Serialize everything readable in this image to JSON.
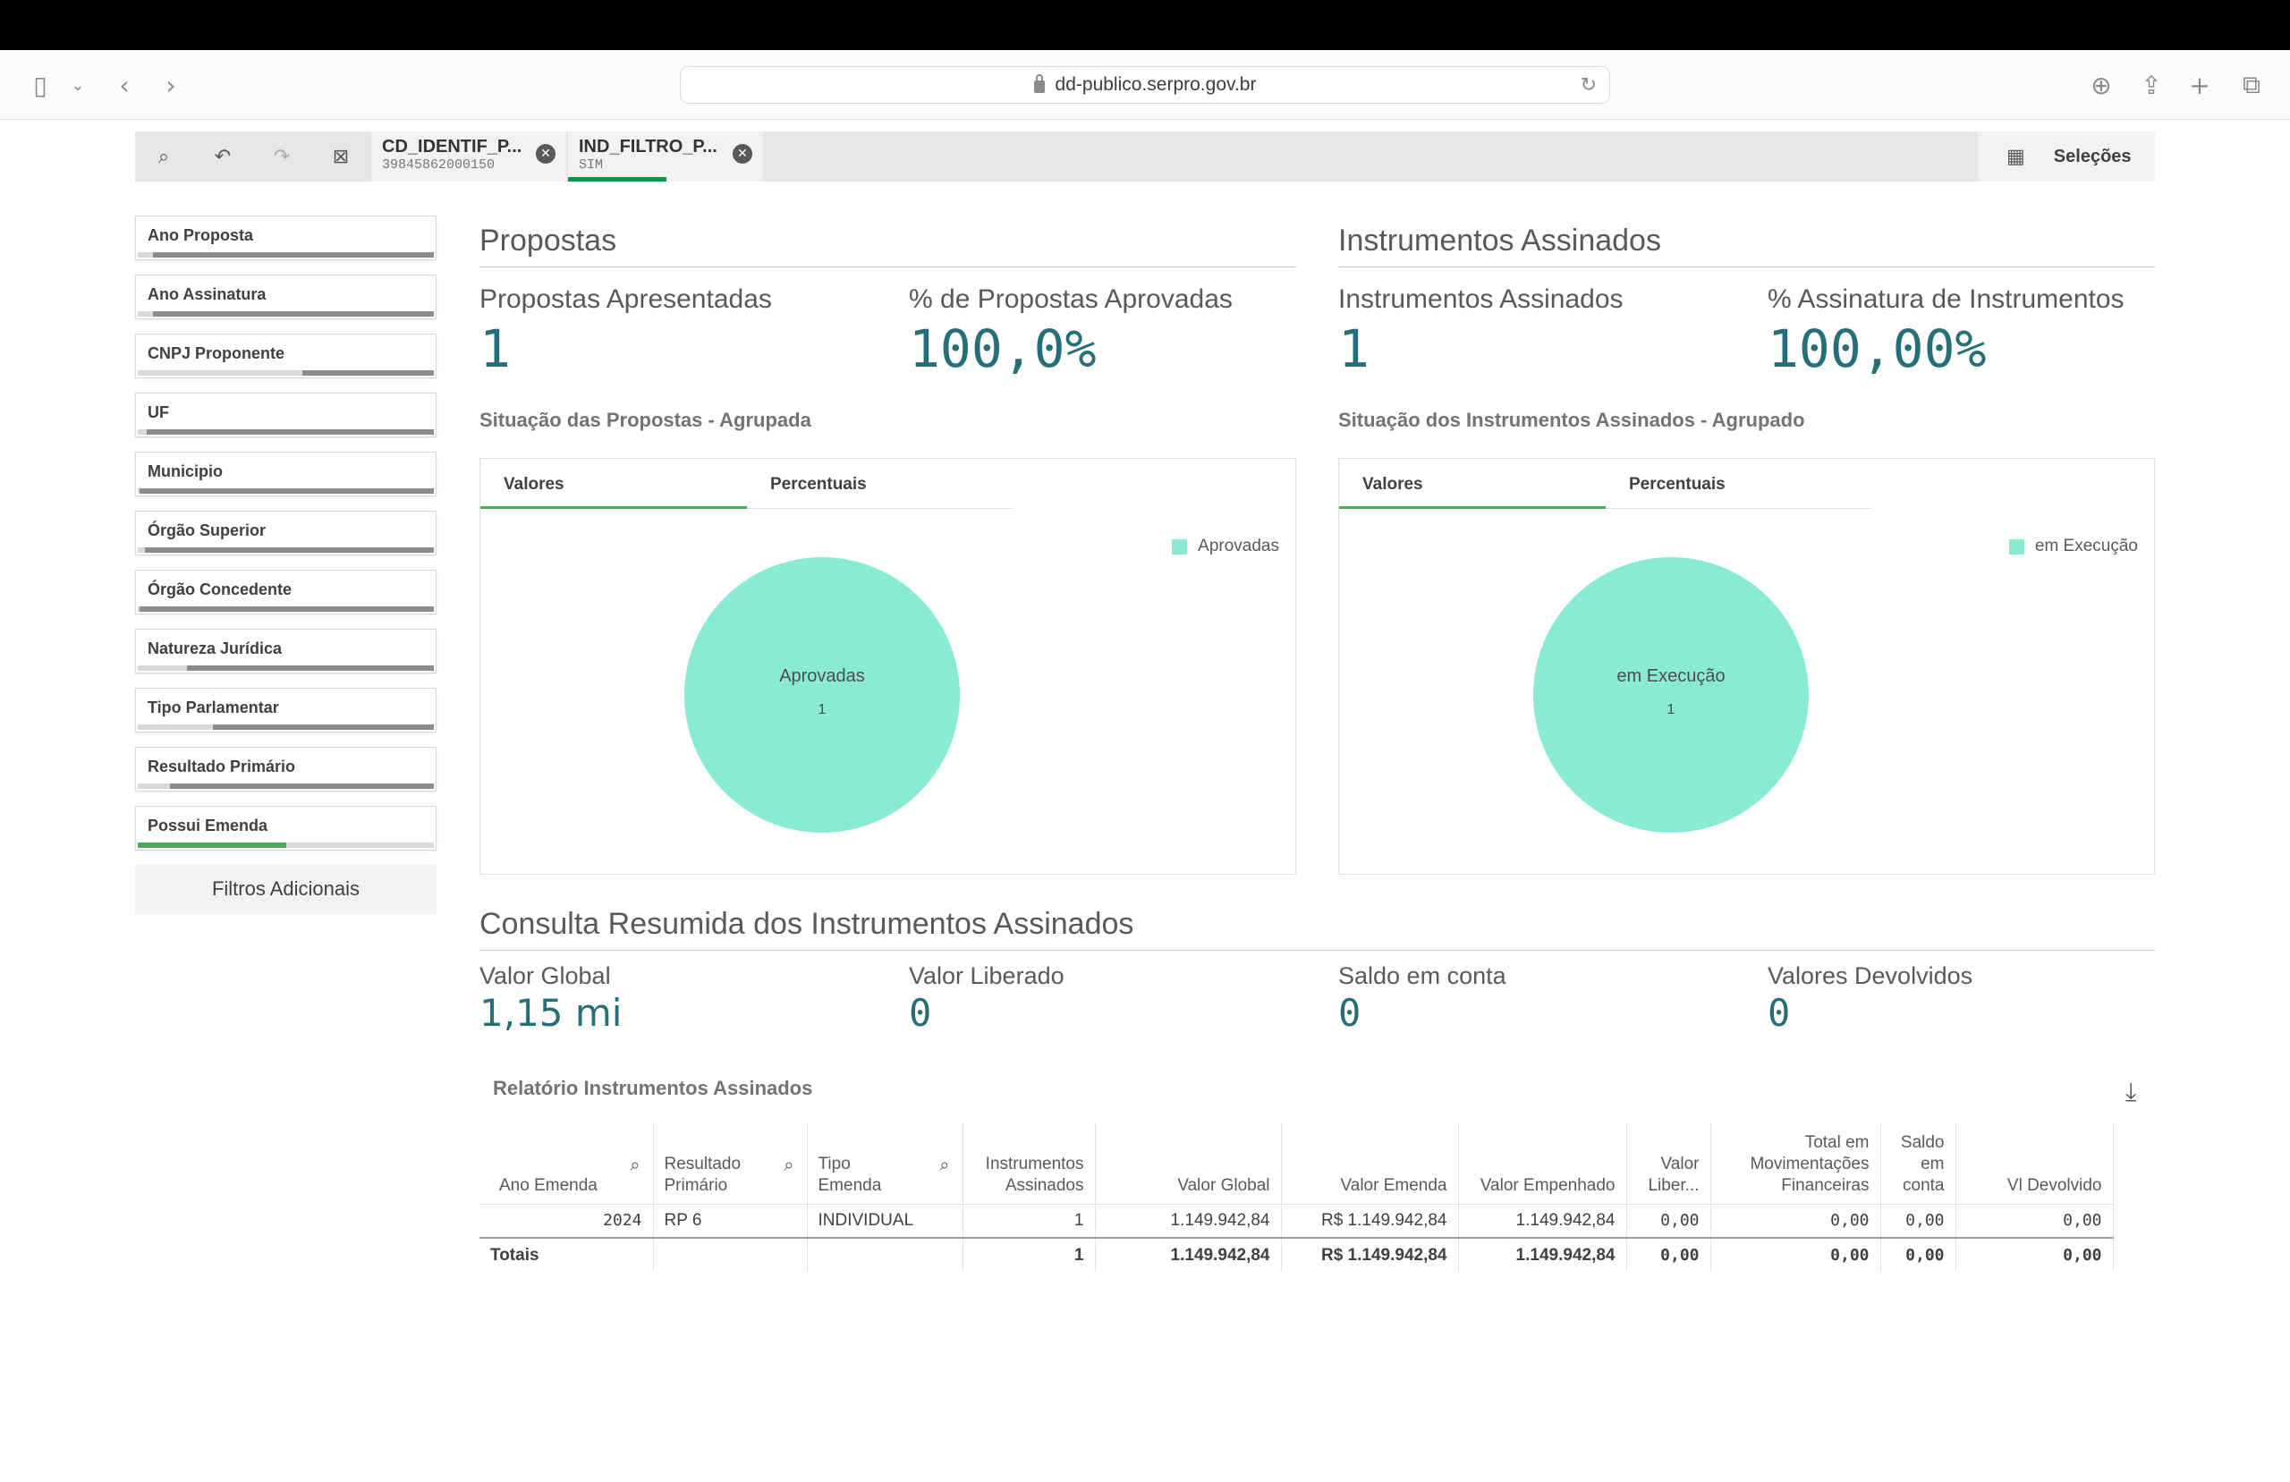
{
  "browser": {
    "url": "dd-publico.serpro.gov.br"
  },
  "selections": {
    "chips": [
      {
        "title": "CD_IDENTIF_P...",
        "value": "39845862000150"
      },
      {
        "title": "IND_FILTRO_P...",
        "value": "SIM"
      }
    ],
    "label": "Seleções"
  },
  "filters": {
    "items": [
      {
        "label": "Ano Proposta"
      },
      {
        "label": "Ano Assinatura"
      },
      {
        "label": "CNPJ Proponente"
      },
      {
        "label": "UF"
      },
      {
        "label": "Municipio"
      },
      {
        "label": "Órgão Superior"
      },
      {
        "label": "Órgão Concedente"
      },
      {
        "label": "Natureza Jurídica"
      },
      {
        "label": "Tipo Parlamentar"
      },
      {
        "label": "Resultado Primário"
      },
      {
        "label": "Possui Emenda"
      }
    ],
    "additional": "Filtros Adicionais"
  },
  "propostas": {
    "heading": "Propostas",
    "kpi1_label": "Propostas Apresentadas",
    "kpi1_value": "1",
    "kpi2_label": "% de Propostas Aprovadas",
    "kpi2_value": "100,0%",
    "chart_title": "Situação das Propostas - Agrupada",
    "tab_values": "Valores",
    "tab_percent": "Percentuais",
    "legend": "Aprovadas",
    "slice_label": "Aprovadas",
    "slice_value": "1"
  },
  "instrumentos": {
    "heading": "Instrumentos Assinados",
    "kpi1_label": "Instrumentos Assinados",
    "kpi1_value": "1",
    "kpi2_label": "% Assinatura de Instrumentos",
    "kpi2_value": "100,00%",
    "chart_title": "Situação dos Instrumentos Assinados - Agrupado",
    "tab_values": "Valores",
    "tab_percent": "Percentuais",
    "legend": "em Execução",
    "slice_label": "em Execução",
    "slice_value": "1"
  },
  "resumo": {
    "heading": "Consulta Resumida dos Instrumentos Assinados",
    "k1_label": "Valor Global",
    "k1_value": "1,15 mi",
    "k2_label": "Valor Liberado",
    "k2_value": "0",
    "k3_label": "Saldo em conta",
    "k3_value": "0",
    "k4_label": "Valores Devolvidos",
    "k4_value": "0",
    "report_title": "Relatório Instrumentos Assinados"
  },
  "table": {
    "headers": {
      "ano": "Ano Emenda",
      "resultado": "Resultado Primário",
      "tipo": "Tipo Emenda",
      "instr": "Instrumentos Assinados",
      "vglobal": "Valor Global",
      "vemenda": "Valor Emenda",
      "vempenhado": "Valor Empenhado",
      "vliber": "Valor Liber...",
      "totalmov": "Total em Movimentações Financeiras",
      "saldo": "Saldo em conta",
      "vdevolvido": "Vl Devolvido"
    },
    "row": {
      "ano": "2024",
      "resultado": "RP 6",
      "tipo": "INDIVIDUAL",
      "instr": "1",
      "vglobal": "1.149.942,84",
      "vemenda": "R$ 1.149.942,84",
      "vempenhado": "1.149.942,84",
      "vliber": "0,00",
      "totalmov": "0,00",
      "saldo": "0,00",
      "vdevolvido": "0,00"
    },
    "totals": {
      "label": "Totais",
      "instr": "1",
      "vglobal": "1.149.942,84",
      "vemenda": "R$ 1.149.942,84",
      "vempenhado": "1.149.942,84",
      "vliber": "0,00",
      "totalmov": "0,00",
      "saldo": "0,00",
      "vdevolvido": "0,00"
    }
  },
  "colors": {
    "accent_green": "#52a85a",
    "kpi_teal": "#276e78",
    "pie": "#89ead6"
  }
}
